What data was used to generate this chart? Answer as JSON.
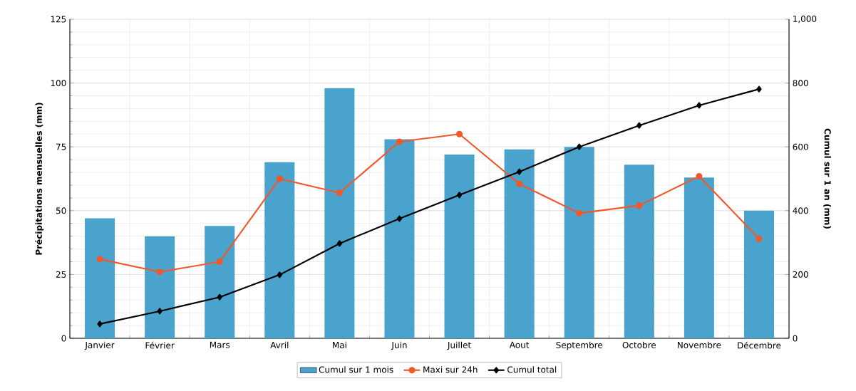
{
  "chart_data": {
    "type": "bar",
    "categories": [
      "Janvier",
      "Février",
      "Mars",
      "Avril",
      "Mai",
      "Juin",
      "Juillet",
      "Aout",
      "Septembre",
      "Octobre",
      "Novembre",
      "Décembre"
    ],
    "series": [
      {
        "name": "Cumul sur 1 mois",
        "color": "#4aa3cc",
        "values": [
          47,
          40,
          44,
          69,
          98,
          78,
          72,
          74,
          75,
          68,
          63,
          50
        ]
      },
      {
        "name": "Maxi sur 24h",
        "type": "line",
        "color": "#f0582a",
        "marker": "circle",
        "values": [
          31,
          26,
          30,
          62.5,
          57,
          77,
          80,
          60.5,
          49,
          52,
          63.5,
          39
        ]
      },
      {
        "name": "Cumul total",
        "type": "line",
        "color": "#000000",
        "marker": "diamond",
        "axis": "y2",
        "values": [
          45,
          85,
          129,
          199,
          297,
          375,
          449,
          522,
          600,
          667,
          730,
          781
        ]
      }
    ],
    "ylabel": "Précipitations mensuelles (mm)",
    "y2label": "Cumul sur 1 an (mm)",
    "ylim": [
      0,
      125
    ],
    "yticks": [
      0,
      25,
      50,
      75,
      100,
      125
    ],
    "y2lim": [
      0,
      1000
    ],
    "y2ticks": [
      0,
      200,
      400,
      600,
      800,
      {
        "value": 1000,
        "label": "1,000"
      }
    ],
    "grid": true,
    "legend": "bottom"
  }
}
